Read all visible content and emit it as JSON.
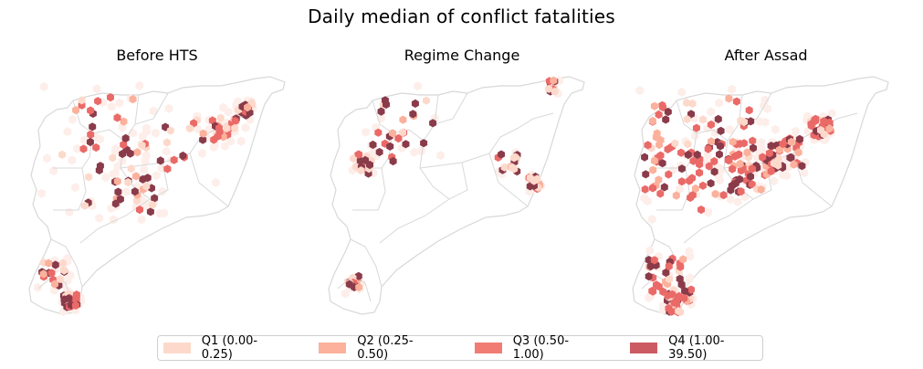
{
  "figure_title": "Daily median of conflict fatalities",
  "panels": [
    {
      "title": "Before HTS"
    },
    {
      "title": "Regime Change"
    },
    {
      "title": "After Assad"
    }
  ],
  "legend": [
    {
      "label": "Q1 (0.00-0.25)",
      "color": "#fdd9cb"
    },
    {
      "label": "Q2 (0.25-0.50)",
      "color": "#fbb19c"
    },
    {
      "label": "Q3 (0.50-1.00)",
      "color": "#f07c73"
    },
    {
      "label": "Q4 (1.00-39.50)",
      "color": "#cc5a63"
    }
  ],
  "colors": {
    "q1": "#fdeeea",
    "q2": "#fbb19c",
    "q3": "#ea6a68",
    "q4": "#8a3b4a",
    "border": "#d8d8d8",
    "country_fill": "#ffffff"
  }
}
